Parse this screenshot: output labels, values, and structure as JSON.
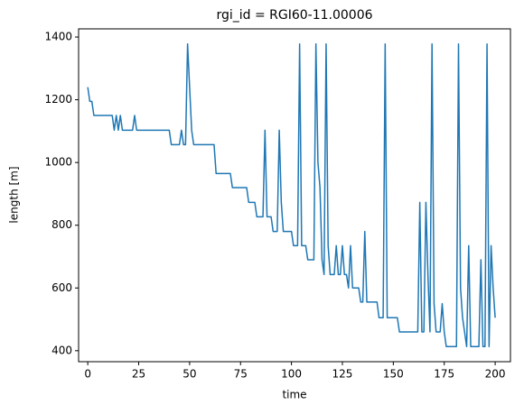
{
  "chart_data": {
    "type": "line",
    "title": "rgi_id = RGI60-11.00006",
    "x_label": "time",
    "y_label": "length [m]",
    "series": [
      {
        "name": "length",
        "color": "#1f77b4",
        "x": [
          0,
          1,
          2,
          3,
          12,
          13,
          14,
          15,
          16,
          17,
          22,
          23,
          24,
          40,
          41,
          45,
          46,
          47,
          48,
          49,
          50,
          51,
          52,
          62,
          63,
          70,
          71,
          78,
          79,
          82,
          83,
          86,
          87,
          88,
          90,
          91,
          93,
          94,
          95,
          96,
          100,
          101,
          103,
          104,
          105,
          107,
          108,
          111,
          112,
          113,
          114,
          115,
          116,
          117,
          118,
          119,
          121,
          122,
          123,
          124,
          125,
          126,
          127,
          128,
          129,
          130,
          133,
          134,
          135,
          136,
          137,
          142,
          143,
          145,
          146,
          147,
          152,
          153,
          162,
          163,
          164,
          165,
          166,
          167,
          168,
          169,
          170,
          171,
          173,
          174,
          175,
          176,
          181,
          182,
          183,
          184,
          186,
          187,
          188,
          192,
          193,
          194,
          195,
          196,
          197,
          198,
          199,
          200
        ],
        "values": [
          1240,
          1195,
          1195,
          1150,
          1150,
          1103,
          1150,
          1103,
          1150,
          1103,
          1103,
          1150,
          1103,
          1103,
          1057,
          1057,
          1103,
          1057,
          1057,
          1378,
          1240,
          1103,
          1057,
          1057,
          965,
          965,
          920,
          920,
          873,
          873,
          827,
          827,
          1103,
          827,
          827,
          780,
          780,
          1103,
          873,
          780,
          780,
          735,
          735,
          1378,
          735,
          735,
          690,
          690,
          1378,
          1000,
          920,
          690,
          643,
          1378,
          735,
          643,
          643,
          735,
          643,
          643,
          735,
          643,
          643,
          600,
          735,
          600,
          600,
          555,
          555,
          780,
          555,
          555,
          505,
          505,
          1378,
          505,
          505,
          460,
          460,
          873,
          460,
          460,
          873,
          640,
          460,
          1378,
          550,
          460,
          460,
          550,
          460,
          413,
          413,
          1378,
          600,
          505,
          413,
          735,
          413,
          413,
          690,
          413,
          413,
          1378,
          413,
          735,
          600,
          505
        ]
      }
    ],
    "xlim": [
      -4.5,
      207.5
    ],
    "xticks": [
      0,
      25,
      50,
      75,
      100,
      125,
      150,
      175,
      200
    ],
    "ylim": [
      365,
      1426
    ],
    "yticks": [
      400,
      600,
      800,
      1000,
      1200,
      1400
    ]
  }
}
